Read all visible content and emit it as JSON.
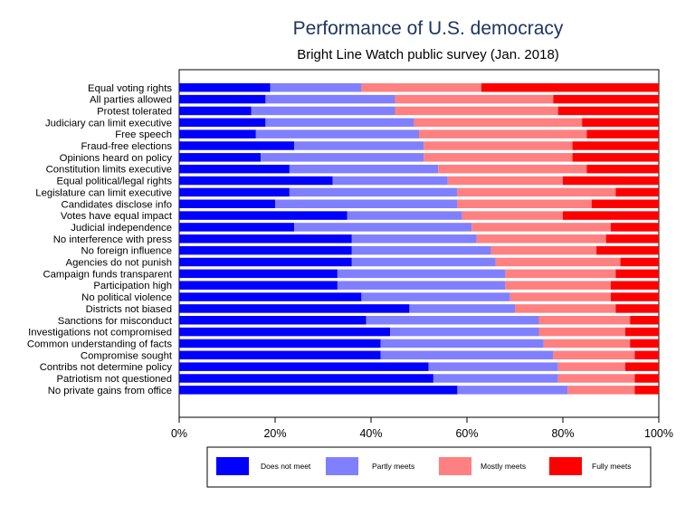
{
  "chart_data": {
    "type": "bar",
    "orientation": "horizontal",
    "stacked": true,
    "title": "Performance of U.S. democracy",
    "subtitle": "Bright Line Watch public survey (Jan. 2018)",
    "xlim": [
      0,
      100
    ],
    "x_ticks": [
      {
        "value": 0,
        "label": "0%"
      },
      {
        "value": 20,
        "label": "20%"
      },
      {
        "value": 40,
        "label": "40%"
      },
      {
        "value": 60,
        "label": "60%"
      },
      {
        "value": 80,
        "label": "80%"
      },
      {
        "value": 100,
        "label": "100%"
      }
    ],
    "legend_position": "bottom",
    "categories": [
      "Equal voting rights",
      "All parties allowed",
      "Protest tolerated",
      "Judiciary can limit executive",
      "Free speech",
      "Fraud-free elections",
      "Opinions heard on policy",
      "Constitution limits executive",
      "Equal political/legal rights",
      "Legislature can limit executive",
      "Candidates disclose info",
      "Votes have equal impact",
      "Judicial independence",
      "No interference with press",
      "No foreign influence",
      "Agencies do not punish",
      "Campaign funds transparent",
      "Participation high",
      "No political violence",
      "Districts not biased",
      "Sanctions for misconduct",
      "Investigations not compromised",
      "Common understanding of facts",
      "Compromise sought",
      "Contribs not determine policy",
      "Patriotism not questioned",
      "No private gains from office"
    ],
    "series": [
      {
        "name": "Does not meet",
        "color": "#0000ff",
        "values": [
          19,
          18,
          15,
          18,
          16,
          24,
          17,
          23,
          32,
          23,
          20,
          35,
          24,
          36,
          36,
          36,
          33,
          33,
          38,
          48,
          39,
          44,
          42,
          42,
          52,
          53,
          58
        ]
      },
      {
        "name": "Partly meets",
        "color": "#8080ff",
        "values": [
          19,
          27,
          30,
          31,
          34,
          27,
          34,
          31,
          24,
          35,
          38,
          24,
          37,
          26,
          29,
          30,
          35,
          35,
          31,
          22,
          36,
          31,
          34,
          36,
          27,
          26,
          23
        ]
      },
      {
        "name": "Mostly meets",
        "color": "#ff8080",
        "values": [
          25,
          33,
          34,
          35,
          35,
          31,
          31,
          31,
          24,
          33,
          28,
          21,
          29,
          27,
          22,
          26,
          23,
          22,
          21,
          21,
          19,
          18,
          18,
          17,
          14,
          16,
          14
        ]
      },
      {
        "name": "Fully meets",
        "color": "#ff0000",
        "values": [
          37,
          22,
          21,
          16,
          15,
          18,
          18,
          15,
          20,
          9,
          14,
          20,
          10,
          11,
          13,
          8,
          9,
          10,
          10,
          9,
          6,
          7,
          6,
          5,
          7,
          5,
          5
        ]
      }
    ]
  }
}
